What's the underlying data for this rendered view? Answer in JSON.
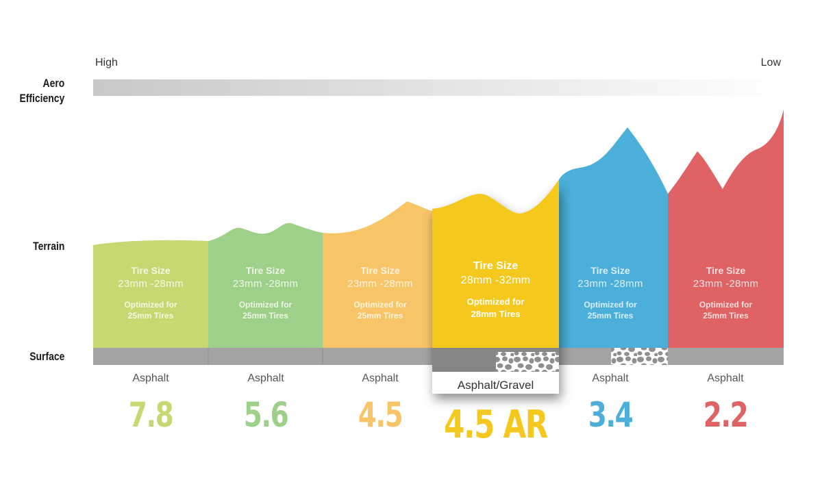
{
  "scale": {
    "title": "Aero Efficiency",
    "title_lines": [
      "Aero",
      "Efficiency"
    ],
    "high_label": "High",
    "low_label": "Low"
  },
  "rows": {
    "terrain_label": "Terrain",
    "surface_label": "Surface"
  },
  "models": [
    {
      "number": "7.8",
      "color": "#c5d872",
      "tire_title": "Tire Size",
      "tire_size": "23mm -28mm",
      "opt_line1": "Optimized for",
      "opt_line2": "25mm Tires",
      "surface": "Asphalt",
      "surface_texture": "none"
    },
    {
      "number": "5.6",
      "color": "#9fd08a",
      "tire_title": "Tire Size",
      "tire_size": "23mm -28mm",
      "opt_line1": "Optimized for",
      "opt_line2": "25mm Tires",
      "surface": "Asphalt",
      "surface_texture": "none"
    },
    {
      "number": "4.5",
      "color": "#f7c567",
      "tire_title": "Tire Size",
      "tire_size": "23mm -28mm",
      "opt_line1": "Optimized for",
      "opt_line2": "25mm Tires",
      "surface": "Asphalt",
      "surface_texture": "none"
    },
    {
      "number": "4.5 AR",
      "color": "#f4c81e",
      "tire_title": "Tire Size",
      "tire_size": "28mm -32mm",
      "opt_line1": "Optimized for",
      "opt_line2": "28mm Tires",
      "surface": "Asphalt/Gravel",
      "surface_texture": "gravel",
      "featured": true
    },
    {
      "number": "3.4",
      "color": "#4bafd9",
      "tire_title": "Tire Size",
      "tire_size": "23mm -28mm",
      "opt_line1": "Optimized for",
      "opt_line2": "25mm Tires",
      "surface": "Asphalt",
      "surface_texture": "gravel"
    },
    {
      "number": "2.2",
      "color": "#df6265",
      "tire_title": "Tire Size",
      "tire_size": "23mm -28mm",
      "opt_line1": "Optimized for",
      "opt_line2": "25mm Tires",
      "surface": "Asphalt",
      "surface_texture": "none"
    }
  ],
  "colors": {
    "surface_bar": "#a3a3a3",
    "surface_bar_dark": "#858585",
    "gradient_start": "#c8c8c8",
    "gradient_end": "#ffffff"
  }
}
